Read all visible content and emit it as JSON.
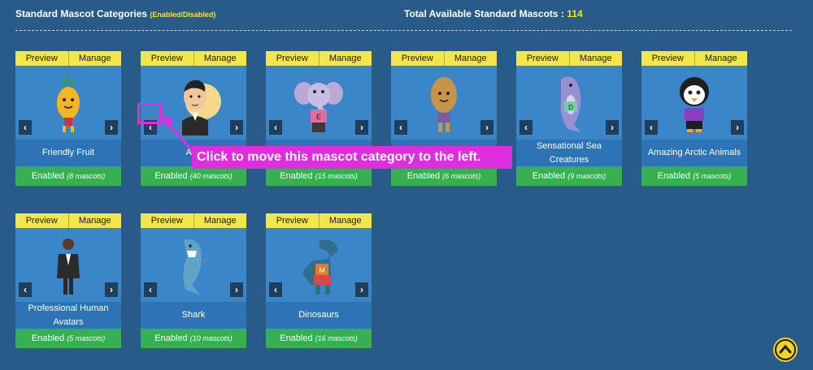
{
  "header": {
    "title": "Standard Mascot Categories",
    "subtitle": "(Enabled/Disabled)",
    "total_label": "Total Available Standard Mascots :",
    "total_count": "114"
  },
  "tabs": {
    "preview": "Preview",
    "manage": "Manage"
  },
  "cards": [
    {
      "name": "Friendly Fruit",
      "status": "Enabled",
      "count": "(8 mascots)",
      "icon": "pineapple-mascot-icon"
    },
    {
      "name": "Ava",
      "status": "Enabled",
      "count": "(40 mascots)",
      "icon": "avatar-man-mascot-icon"
    },
    {
      "name": "",
      "status": "Enabled",
      "count": "(15 mascots)",
      "icon": "elephant-mascot-icon"
    },
    {
      "name": "",
      "status": "Enabled",
      "count": "(6 mascots)",
      "icon": "potato-mascot-icon"
    },
    {
      "name": "Sensational Sea Creatures",
      "status": "Enabled",
      "count": "(9 mascots)",
      "icon": "dolphin-mascot-icon"
    },
    {
      "name": "Amazing Arctic Animals",
      "status": "Enabled",
      "count": "(5 mascots)",
      "icon": "penguin-mascot-icon"
    },
    {
      "name": "Professional Human Avatars",
      "status": "Enabled",
      "count": "(5 mascots)",
      "icon": "businessman-mascot-icon"
    },
    {
      "name": "Shark",
      "status": "Enabled",
      "count": "(10 mascots)",
      "icon": "shark-mascot-icon"
    },
    {
      "name": "Dinosaurs",
      "status": "Enabled",
      "count": "(16 mascots)",
      "icon": "dinosaur-mascot-icon"
    }
  ],
  "callout": {
    "text": "Click to move this mascot category to the left."
  },
  "colors": {
    "background": "#285b88",
    "highlight": "#e12de0",
    "enabled": "#36b050",
    "tab": "#f3e54a"
  }
}
